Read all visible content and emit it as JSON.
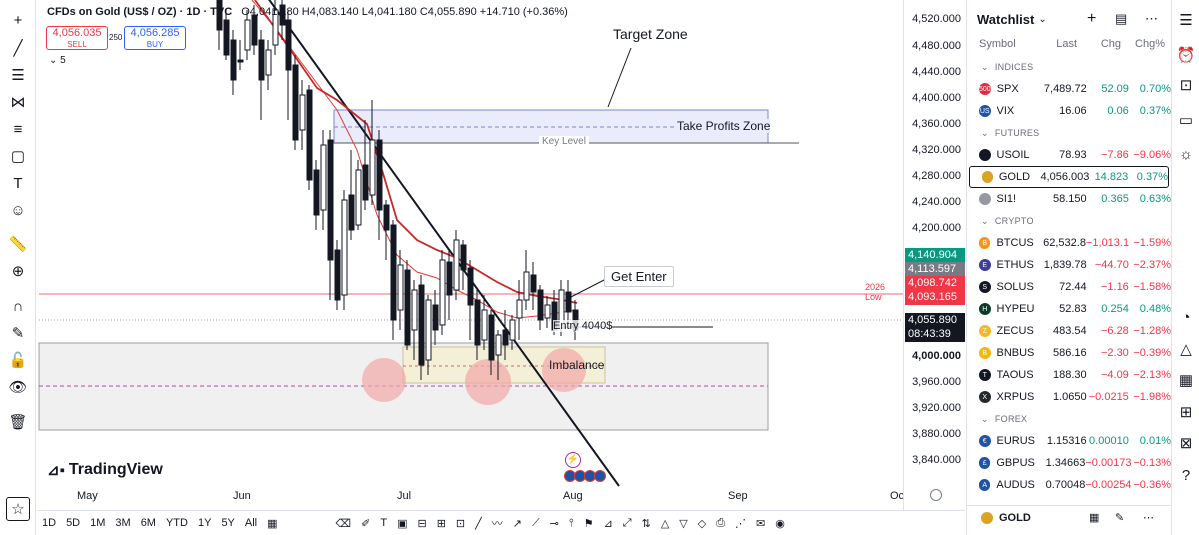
{
  "legend": {
    "title": "CFDs on Gold (US$ / OZ) · 1D · TVC",
    "ohlc": "O4,041.180 H4,083.140 L4,041.180 C4,055.890 +14.710 (+0.36%)",
    "sell_price": "4,056.035",
    "sell_label": "SELL",
    "spread": "250",
    "buy_price": "4,056.285",
    "buy_label": "BUY",
    "indicator_count": "5"
  },
  "annotations": {
    "target_zone": "Target Zone",
    "take_profits": "Take Profits Zone",
    "key_level": "Key Level",
    "get_enter": "Get Enter",
    "entry": "Entry 4040$",
    "imbalance": "Imbalance",
    "low_2026": "2026 Low",
    "watermark": "TradingView"
  },
  "price_axis": {
    "ticks": [
      "4,520.000",
      "4,480.000",
      "4,440.000",
      "4,400.000",
      "4,360.000",
      "4,320.000",
      "4,280.000",
      "4,240.000",
      "4,200.000",
      "4,000.000",
      "3,960.000",
      "3,920.000",
      "3,880.000",
      "3,840.000"
    ],
    "tags": [
      {
        "text": "4,140.904",
        "color": "#089981"
      },
      {
        "text": "4,113.597",
        "color": "#787b86"
      },
      {
        "text": "4,098.742",
        "color": "#f23645"
      },
      {
        "text": "4,093.165",
        "color": "#f23645"
      },
      {
        "text": "4,055.890",
        "color": "#131722"
      },
      {
        "text": "08:43:39",
        "color": "#131722"
      }
    ]
  },
  "time_axis": [
    "May",
    "Jun",
    "Jul",
    "Aug",
    "Sep",
    "Oct"
  ],
  "bottom_bar": {
    "ranges": [
      "1D",
      "5D",
      "1M",
      "3M",
      "6M",
      "YTD",
      "1Y",
      "5Y",
      "All"
    ]
  },
  "watchlist": {
    "title": "Watchlist",
    "columns": [
      "Symbol",
      "Last",
      "Chg",
      "Chg%"
    ],
    "sections": [
      {
        "name": "INDICES",
        "rows": [
          {
            "sym": "SPX",
            "last": "7,489.72",
            "chg": "52.09",
            "chgp": "0.70%",
            "dir": "up",
            "icon_color": "#e8283b",
            "icon_text": "500"
          },
          {
            "sym": "VIX",
            "last": "16.06",
            "chg": "0.06",
            "chgp": "0.37%",
            "dir": "up",
            "icon_color": "#1e53a6",
            "icon_text": "US"
          }
        ]
      },
      {
        "name": "FUTURES",
        "rows": [
          {
            "sym": "USOIL",
            "last": "78.93",
            "chg": "−7.86",
            "chgp": "−9.06%",
            "dir": "dn",
            "icon_color": "#131722",
            "icon_text": ""
          },
          {
            "sym": "GOLD",
            "last": "4,056.003",
            "chg": "14.823",
            "chgp": "0.37%",
            "dir": "up",
            "icon_color": "#d9a422",
            "icon_text": "",
            "selected": true
          },
          {
            "sym": "SI1!",
            "last": "58.150",
            "chg": "0.365",
            "chgp": "0.63%",
            "dir": "up",
            "icon_color": "#9598a1",
            "icon_text": ""
          }
        ]
      },
      {
        "name": "CRYPTO",
        "rows": [
          {
            "sym": "BTCUS",
            "last": "62,532.8",
            "chg": "−1,013.1",
            "chgp": "−1.59%",
            "dir": "dn",
            "icon_color": "#f7931a",
            "icon_text": "B"
          },
          {
            "sym": "ETHUS",
            "last": "1,839.78",
            "chg": "−44.70",
            "chgp": "−2.37%",
            "dir": "dn",
            "icon_color": "#3c3c9e",
            "icon_text": "E"
          },
          {
            "sym": "SOLUS",
            "last": "72.44",
            "chg": "−1.16",
            "chgp": "−1.58%",
            "dir": "dn",
            "icon_color": "#131722",
            "icon_text": "S"
          },
          {
            "sym": "HYPEU",
            "last": "52.83",
            "chg": "0.254",
            "chgp": "0.48%",
            "dir": "up",
            "icon_color": "#0a3a2c",
            "icon_text": "H"
          },
          {
            "sym": "ZECUS",
            "last": "483.54",
            "chg": "−6.28",
            "chgp": "−1.28%",
            "dir": "dn",
            "icon_color": "#f4b728",
            "icon_text": "Z"
          },
          {
            "sym": "BNBUS",
            "last": "586.16",
            "chg": "−2.30",
            "chgp": "−0.39%",
            "dir": "dn",
            "icon_color": "#f0b90b",
            "icon_text": "B"
          },
          {
            "sym": "TAOUS",
            "last": "188.30",
            "chg": "−4.09",
            "chgp": "−2.13%",
            "dir": "dn",
            "icon_color": "#131722",
            "icon_text": "T"
          },
          {
            "sym": "XRPUS",
            "last": "1.0650",
            "chg": "−0.0215",
            "chgp": "−1.98%",
            "dir": "dn",
            "icon_color": "#23292f",
            "icon_text": "X"
          }
        ]
      },
      {
        "name": "FOREX",
        "rows": [
          {
            "sym": "EURUS",
            "last": "1.15316",
            "chg": "0.00010",
            "chgp": "0.01%",
            "dir": "up",
            "icon_color": "#1e53a6",
            "icon_text": "€"
          },
          {
            "sym": "GBPUS",
            "last": "1.34663",
            "chg": "−0.00173",
            "chgp": "−0.13%",
            "dir": "dn",
            "icon_color": "#1e53a6",
            "icon_text": "£"
          },
          {
            "sym": "AUDUS",
            "last": "0.70048",
            "chg": "−0.00254",
            "chgp": "−0.36%",
            "dir": "dn",
            "icon_color": "#1e53a6",
            "icon_text": "A"
          }
        ]
      }
    ],
    "footer_symbol": "GOLD"
  }
}
